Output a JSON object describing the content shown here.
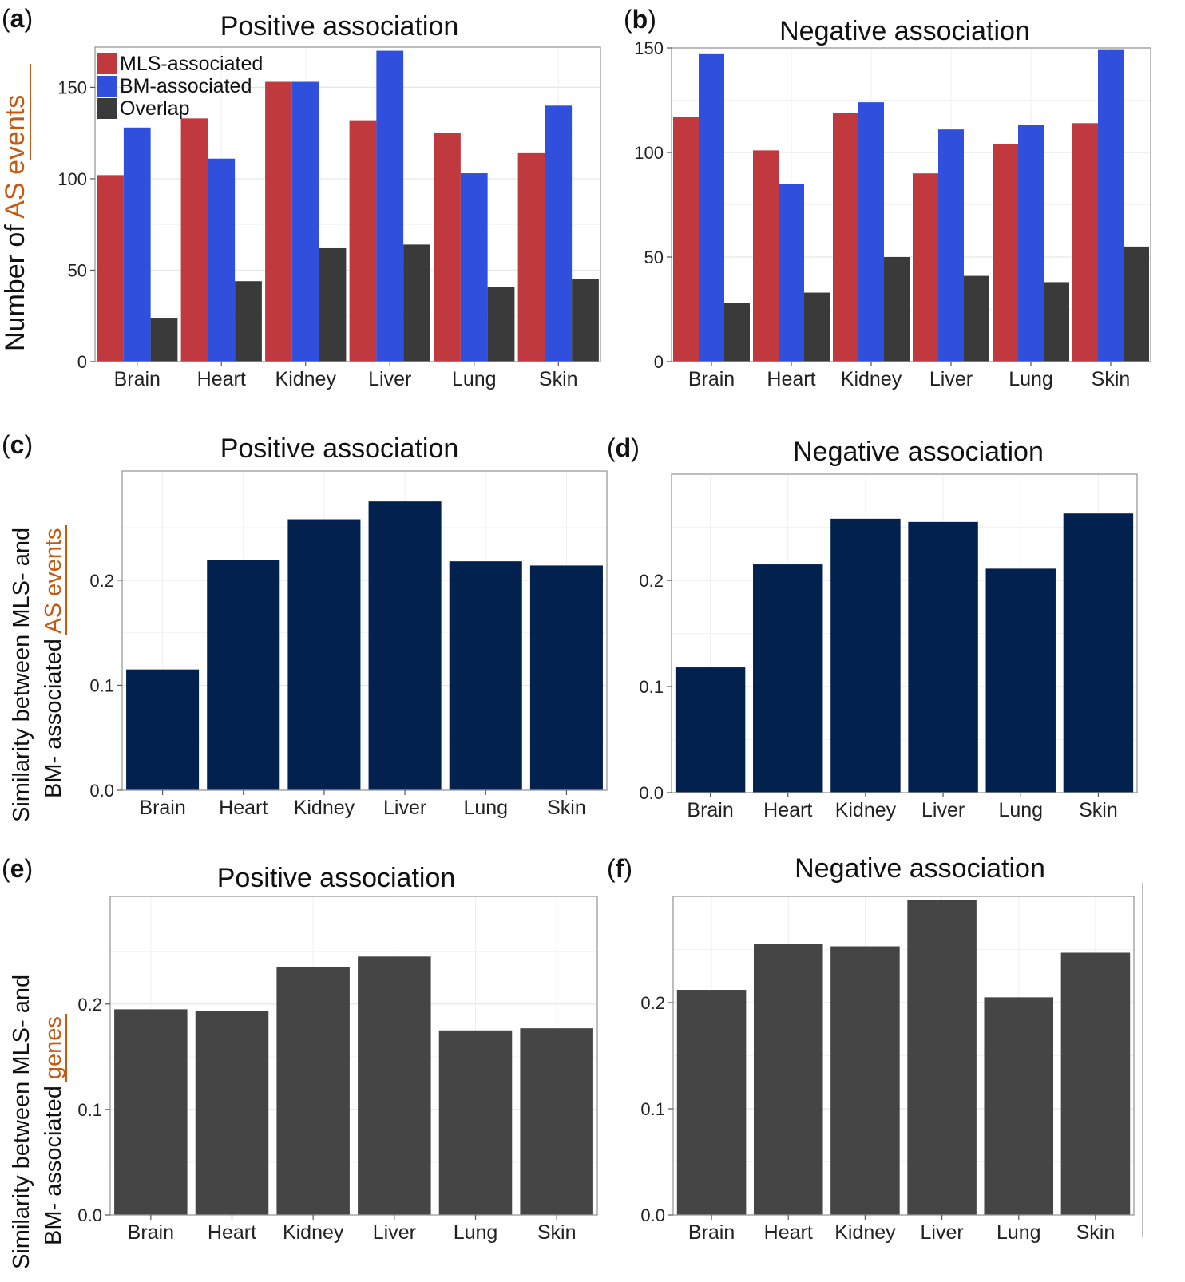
{
  "figure": {
    "ylabel_events": {
      "prefix": "Number of ",
      "highlight": "AS events"
    },
    "ylabel_sim_events": {
      "line1": "Similarity between MLS- and",
      "line2_prefix": "BM- associated ",
      "line2_highlight": "AS events"
    },
    "ylabel_sim_genes": {
      "line1": "Similarity between MLS- and",
      "line2_prefix": "BM- associated ",
      "line2_highlight": "genes"
    }
  },
  "colors": {
    "mls": "#C0393F",
    "bm": "#2F4FDC",
    "overlap": "#3A3A3A",
    "navy": "#03214F",
    "gray_bar": "#454545",
    "highlight": "#C45A12",
    "grid": "#E6E6E6"
  },
  "chart_data": [
    {
      "panel": "(a)",
      "type": "bar",
      "title": "Positive association",
      "categories": [
        "Brain",
        "Heart",
        "Kidney",
        "Liver",
        "Lung",
        "Skin"
      ],
      "series": [
        {
          "name": "MLS-associated",
          "values": [
            102,
            133,
            153,
            132,
            125,
            114
          ]
        },
        {
          "name": "BM-associated",
          "values": [
            128,
            111,
            153,
            170,
            103,
            140
          ]
        },
        {
          "name": "Overlap",
          "values": [
            24,
            44,
            62,
            64,
            41,
            45
          ]
        }
      ],
      "yticks": [
        "0",
        "50",
        "100",
        "150"
      ],
      "ylim": [
        0,
        172
      ]
    },
    {
      "panel": "(b)",
      "type": "bar",
      "title": "Negative association",
      "categories": [
        "Brain",
        "Heart",
        "Kidney",
        "Liver",
        "Lung",
        "Skin"
      ],
      "series": [
        {
          "name": "MLS-associated",
          "values": [
            117,
            101,
            119,
            90,
            104,
            114
          ]
        },
        {
          "name": "BM-associated",
          "values": [
            147,
            85,
            124,
            111,
            113,
            149
          ]
        },
        {
          "name": "Overlap",
          "values": [
            28,
            33,
            50,
            41,
            38,
            55
          ]
        }
      ],
      "yticks": [
        "0",
        "50",
        "100",
        "150"
      ],
      "ylim": [
        0,
        150
      ]
    },
    {
      "panel": "(c)",
      "type": "bar",
      "title": "Positive association",
      "categories": [
        "Brain",
        "Heart",
        "Kidney",
        "Liver",
        "Lung",
        "Skin"
      ],
      "values": [
        0.115,
        0.219,
        0.258,
        0.275,
        0.218,
        0.214
      ],
      "yticks": [
        "0.0",
        "0.1",
        "0.2"
      ],
      "ylim": [
        0,
        0.304
      ]
    },
    {
      "panel": "(d)",
      "type": "bar",
      "title": "Negative association",
      "categories": [
        "Brain",
        "Heart",
        "Kidney",
        "Liver",
        "Lung",
        "Skin"
      ],
      "values": [
        0.118,
        0.215,
        0.258,
        0.255,
        0.211,
        0.263
      ],
      "yticks": [
        "0.0",
        "0.1",
        "0.2"
      ],
      "ylim": [
        0,
        0.3
      ]
    },
    {
      "panel": "(e)",
      "type": "bar",
      "title": "Positive association",
      "categories": [
        "Brain",
        "Heart",
        "Kidney",
        "Liver",
        "Lung",
        "Skin"
      ],
      "values": [
        0.195,
        0.193,
        0.235,
        0.245,
        0.175,
        0.177
      ],
      "yticks": [
        "0.0",
        "0.1",
        "0.2"
      ],
      "ylim": [
        0,
        0.302
      ]
    },
    {
      "panel": "(f)",
      "type": "bar",
      "title": "Negative association",
      "categories": [
        "Brain",
        "Heart",
        "Kidney",
        "Liver",
        "Lung",
        "Skin"
      ],
      "values": [
        0.212,
        0.255,
        0.253,
        0.297,
        0.205,
        0.247
      ],
      "yticks": [
        "0.0",
        "0.1",
        "0.2"
      ],
      "ylim": [
        0,
        0.3
      ]
    }
  ]
}
